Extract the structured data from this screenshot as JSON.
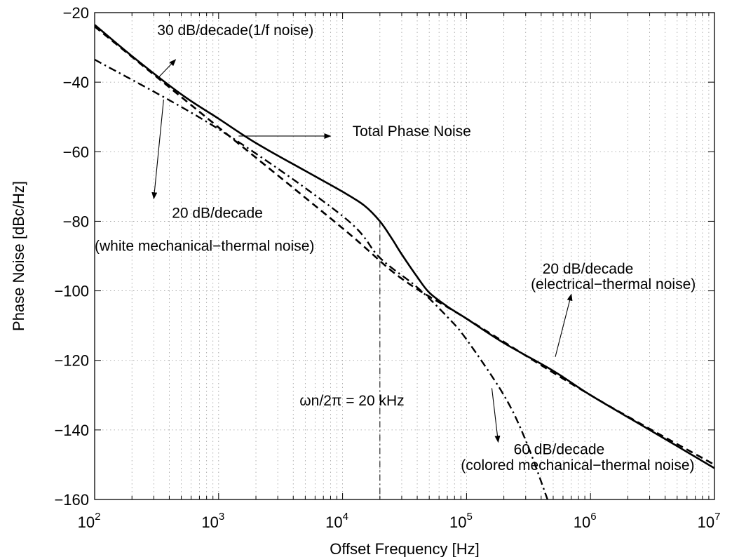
{
  "chart_data": {
    "type": "line",
    "title": "",
    "xlabel": "Offset Frequency [Hz]",
    "ylabel": "Phase Noise [dBc/Hz]",
    "xscale": "log",
    "xlim": [
      100,
      10000000
    ],
    "ylim": [
      -160,
      -20
    ],
    "grid": true,
    "xticks": [
      {
        "value": 100,
        "base": "10",
        "exp": "2"
      },
      {
        "value": 1000,
        "base": "10",
        "exp": "3"
      },
      {
        "value": 10000,
        "base": "10",
        "exp": "4"
      },
      {
        "value": 100000,
        "base": "10",
        "exp": "5"
      },
      {
        "value": 1000000,
        "base": "10",
        "exp": "6"
      },
      {
        "value": 10000000,
        "base": "10",
        "exp": "7"
      }
    ],
    "yticks": [
      {
        "value": -20,
        "label": "−20"
      },
      {
        "value": -40,
        "label": "−40"
      },
      {
        "value": -60,
        "label": "−60"
      },
      {
        "value": -80,
        "label": "−80"
      },
      {
        "value": -100,
        "label": "−100"
      },
      {
        "value": -120,
        "label": "−120"
      },
      {
        "value": -140,
        "label": "−140"
      },
      {
        "value": -160,
        "label": "−160"
      }
    ],
    "series": [
      {
        "style": "solid",
        "x": [
          100,
          200,
          500,
          1000,
          2000,
          5000,
          10000,
          15000,
          20000,
          25000,
          30000,
          40000,
          50000,
          70000,
          100000,
          200000,
          500000,
          1000000,
          3000000,
          10000000
        ],
        "y": [
          -23.5,
          -32.5,
          -43.5,
          -50.5,
          -57.5,
          -65.5,
          -71.5,
          -75.5,
          -80.0,
          -85.0,
          -89.5,
          -96.0,
          -100.5,
          -104.5,
          -108.0,
          -115.0,
          -123.0,
          -130.0,
          -140.0,
          -151.0
        ]
      },
      {
        "style": "dashed",
        "x": [
          100,
          1000,
          10000,
          30000,
          100000,
          1000000,
          10000000
        ],
        "y": [
          -24.0,
          -53.0,
          -82.0,
          -96.5,
          -108.0,
          -130.0,
          -150.0
        ]
      },
      {
        "style": "dashdot",
        "x": [
          100,
          1000,
          10000,
          20000,
          40000,
          70000,
          100000,
          200000,
          300000,
          450000
        ],
        "y": [
          -33.5,
          -53.5,
          -78.5,
          -90.5,
          -99.0,
          -107.5,
          -114.0,
          -130.0,
          -143.0,
          -160.0
        ]
      }
    ],
    "vline": {
      "x": 20000,
      "y_top": -80
    },
    "annotations": [
      {
        "text": "30 dB/decade(1/f noise)",
        "x": 320,
        "y": -26.5,
        "arrow_from": [
          330,
          -38.5
        ],
        "arrow_to": [
          450,
          -33.5
        ]
      },
      {
        "text": "Total Phase Noise",
        "x": 12000,
        "y": -55.5,
        "arrow_from": [
          1450,
          -55.5
        ],
        "arrow_to": [
          8000,
          -55.5
        ]
      },
      {
        "text": "20 dB/decade",
        "x": 420,
        "y": -79.0,
        "arrow_from": [
          360,
          -45.0
        ],
        "arrow_to": [
          300,
          -73.5
        ]
      },
      {
        "text": "(white mechanical−thermal noise)",
        "x": 100,
        "y": -88.5
      },
      {
        "text": "20 dB/decade",
        "x": 410000,
        "y": -95.0
      },
      {
        "text": "(electrical−thermal noise)",
        "x": 330000,
        "y": -99.5,
        "arrow_from": [
          520000,
          -119.0
        ],
        "arrow_to": [
          700000,
          -101.0
        ]
      },
      {
        "text": "ωn/2π = 20 kHz",
        "x": 4500,
        "y": -133.0
      },
      {
        "text": "60 dB/decade",
        "x": 240000,
        "y": -147.0,
        "arrow_from": [
          160000,
          -128.0
        ],
        "arrow_to": [
          180000,
          -143.5
        ]
      },
      {
        "text": "(colored mechanical−thermal noise)",
        "x": 90000,
        "y": -151.5
      }
    ]
  }
}
